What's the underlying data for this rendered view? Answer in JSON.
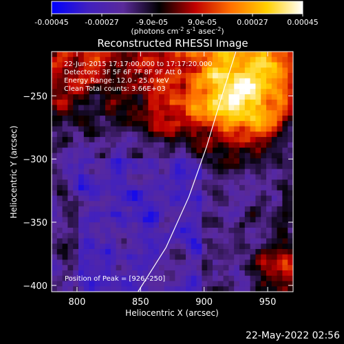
{
  "colorbar": {
    "tick_labels": [
      "-0.00045",
      "-0.00027",
      "-9.0e-05",
      "9.0e-05",
      "0.00027",
      "0.00045"
    ],
    "tick_values": [
      -0.00045,
      -0.00027,
      -9e-05,
      9e-05,
      0.00027,
      0.00045
    ],
    "range": [
      -0.00045,
      0.00045
    ],
    "units_html": "(photons cm<tspan baseline-shift='super' font-size='8'>-2</tspan> s<tspan baseline-shift='super' font-size='8'>-1</tspan> asec<tspan baseline-shift='super' font-size='8'>-2</tspan>)",
    "colors": [
      "#0000ff",
      "#4020c0",
      "#5a2a9a",
      "#000000",
      "#c00000",
      "#ff7000",
      "#ffd000",
      "#ffffff"
    ]
  },
  "chart_data": {
    "type": "heatmap",
    "title": "Reconstructed RHESSI Image",
    "xlabel": "Heliocentric X (arcsec)",
    "ylabel": "Heliocentric Y (arcsec)",
    "xlim": [
      780,
      970
    ],
    "ylim": [
      -405,
      -215
    ],
    "x_ticks": [
      800,
      850,
      900,
      950
    ],
    "y_ticks": [
      -250,
      -300,
      -350,
      -400
    ],
    "annotations": [
      "22-Jun-2015 17:17:00.000 to 17:17:20.000",
      "Detectors: 3F 5F 6F 7F 8F 9F Att 0",
      "Energy Range: 12.0 - 25.0 keV",
      "Clean     Total counts: 3.66E+03"
    ],
    "peak_label": "Position of Peak = [926,-250]",
    "peak": [
      926,
      -250
    ],
    "limb_curve": [
      [
        848,
        -405
      ],
      [
        870,
        -370
      ],
      [
        888,
        -330
      ],
      [
        902,
        -290
      ],
      [
        914,
        -250
      ],
      [
        925,
        -215
      ]
    ]
  },
  "footer": {
    "date": "22-May-2022 02:56"
  }
}
